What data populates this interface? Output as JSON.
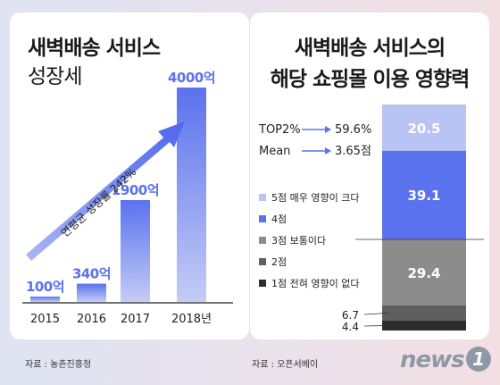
{
  "left": {
    "title_line1": "새벽배송 서비스",
    "title_line2": "성장세",
    "arrow_label": "연평균 성장률 242%",
    "source": "자료 : 농촌진흥청"
  },
  "right": {
    "title_line1": "새벽배송 서비스의",
    "title_line2": "해당 쇼핑몰 이용 영향력",
    "top2_label": "TOP2%",
    "top2_value": "59.6%",
    "mean_label": "Mean",
    "mean_value": "3.65점",
    "source": "자료 : 오픈서베이"
  },
  "logo": {
    "text": "news",
    "mark": "1"
  },
  "colors": {
    "bar_blue": "#5a72ee",
    "s5": "#b9c3f4",
    "s4": "#5a72ee",
    "s3": "#8c8c8c",
    "s2": "#5f5f5f",
    "s1": "#2d2d2d"
  },
  "chart_data": [
    {
      "type": "bar",
      "categories": [
        "2015",
        "2016",
        "2017",
        "2018년"
      ],
      "values": [
        100,
        340,
        1900,
        4000
      ],
      "value_labels": [
        "100억",
        "340억",
        "1900억",
        "4000억"
      ],
      "ylim": [
        0,
        4000
      ],
      "unit": "억"
    },
    {
      "type": "bar",
      "stacked": true,
      "series": [
        {
          "name": "5점 매우 영향이 크다",
          "value": 20.5,
          "color_key": "s5"
        },
        {
          "name": "4점",
          "value": 39.1,
          "color_key": "s4"
        },
        {
          "name": "3점 보통이다",
          "value": 29.4,
          "color_key": "s3"
        },
        {
          "name": "2점",
          "value": 6.7,
          "color_key": "s2"
        },
        {
          "name": "1점 전혀 영향이 없다",
          "value": 4.4,
          "color_key": "s1"
        }
      ],
      "value_labels": [
        "20.5",
        "39.1",
        "29.4",
        "6.7",
        "4.4"
      ]
    }
  ]
}
